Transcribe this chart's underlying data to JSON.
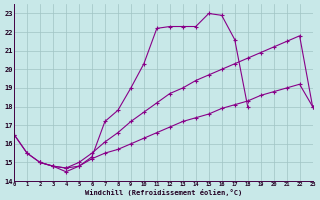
{
  "xlabel": "Windchill (Refroidissement éolien,°C)",
  "bg_color": "#c8e8e8",
  "grid_color": "#a0c4c4",
  "line_color": "#880088",
  "spine_color": "#440044",
  "xlim": [
    0,
    23
  ],
  "ylim": [
    14,
    23.5
  ],
  "xtick_vals": [
    0,
    1,
    2,
    3,
    4,
    5,
    6,
    7,
    8,
    9,
    10,
    11,
    12,
    13,
    14,
    15,
    16,
    17,
    18,
    19,
    20,
    21,
    22,
    23
  ],
  "ytick_vals": [
    14,
    15,
    16,
    17,
    18,
    19,
    20,
    21,
    22,
    23
  ],
  "curve1_x": [
    0,
    1,
    2,
    3,
    4,
    5,
    6,
    7,
    8,
    9,
    10,
    11,
    12,
    13,
    14,
    15,
    16,
    17,
    18
  ],
  "curve1_y": [
    16.5,
    15.5,
    15.0,
    14.8,
    14.5,
    14.8,
    15.3,
    17.2,
    17.8,
    19.0,
    20.3,
    22.2,
    22.3,
    22.3,
    22.3,
    23.0,
    22.9,
    21.6,
    18.0
  ],
  "curve2_x": [
    0,
    1,
    2,
    3,
    4,
    5,
    6,
    7,
    8,
    9,
    10,
    11,
    12,
    13,
    14,
    15,
    16,
    17,
    18,
    19,
    20,
    21,
    22,
    23
  ],
  "curve2_y": [
    16.5,
    15.5,
    15.0,
    14.8,
    14.7,
    15.0,
    15.5,
    16.1,
    16.6,
    17.2,
    17.7,
    18.2,
    18.7,
    19.0,
    19.4,
    19.7,
    20.0,
    20.3,
    20.6,
    20.9,
    21.2,
    21.5,
    21.8,
    18.0
  ],
  "curve3_x": [
    2,
    3,
    4,
    5,
    6,
    7,
    8,
    9,
    10,
    11,
    12,
    13,
    14,
    15,
    16,
    17,
    18,
    19,
    20,
    21,
    22,
    23
  ],
  "curve3_y": [
    15.0,
    14.8,
    14.7,
    14.8,
    15.2,
    15.5,
    15.7,
    16.0,
    16.3,
    16.6,
    16.9,
    17.2,
    17.4,
    17.6,
    17.9,
    18.1,
    18.3,
    18.6,
    18.8,
    19.0,
    19.2,
    18.0
  ]
}
